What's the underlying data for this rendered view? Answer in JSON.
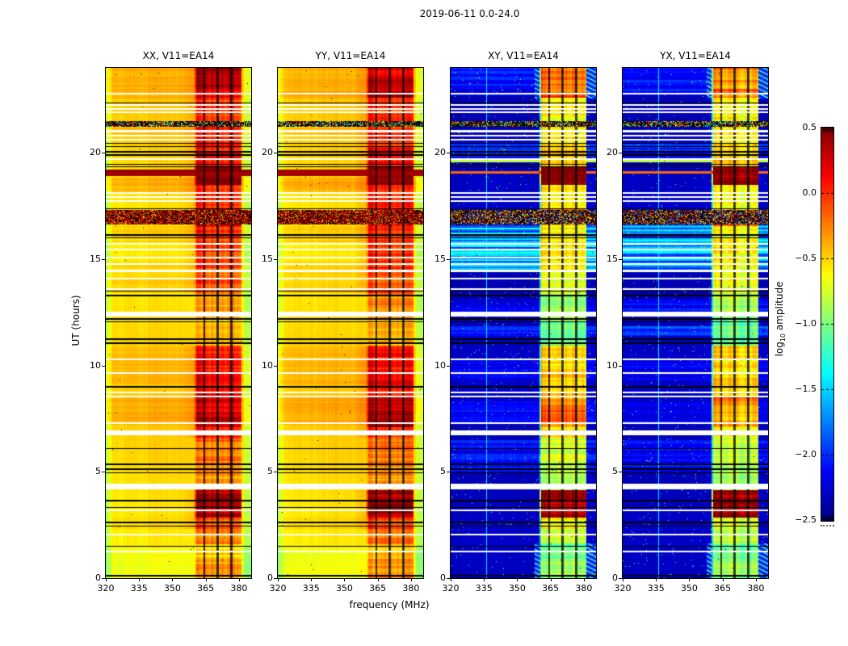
{
  "chart_data": {
    "type": "heatmap",
    "title": "2019-06-11 0.0-24.0",
    "xlabel": "frequency (MHz)",
    "ylabel": "UT (hours)",
    "x_range": [
      320,
      385.5
    ],
    "y_range": [
      0,
      24
    ],
    "x_ticks": {
      "values": [
        320,
        335,
        350,
        365,
        380
      ],
      "labels": [
        "320",
        "335",
        "350",
        "365",
        "380"
      ]
    },
    "y_ticks": {
      "values": [
        0,
        5,
        10,
        15,
        20
      ],
      "labels": [
        "0",
        "5",
        "10",
        "15",
        "20"
      ]
    },
    "panels": [
      {
        "label": "XX, V11=EA14",
        "kind": "auto"
      },
      {
        "label": "YY, V11=EA14",
        "kind": "auto"
      },
      {
        "label": "XY, V11=EA14",
        "kind": "cross"
      },
      {
        "label": "YX, V11=EA14",
        "kind": "cross"
      }
    ],
    "colorbar": {
      "label_prefix": "log",
      "label_sub": "10",
      "label_suffix": " amplitude",
      "colormap": "jet",
      "clim": [
        -2.5,
        0.5
      ],
      "tick_values": [
        0.5,
        0.0,
        -0.5,
        -1.0,
        -1.5,
        -2.0,
        -2.5
      ],
      "tick_labels": [
        "0.5",
        "0.0",
        "−0.5",
        "−1.0",
        "−1.5",
        "−2.0",
        "−2.5"
      ]
    },
    "features": {
      "auto_base_level": -0.56,
      "cross_base_level": -2.32,
      "rfi_band": {
        "f_start": 359.9,
        "f_end": 381.3,
        "gaps": [
          364.35,
          370.35,
          376.45
        ],
        "gap_halfwidth": 0.5,
        "subband_end": 364.3
      },
      "rfi_time_profile": [
        [
          0.0,
          0.9,
          -0.35
        ],
        [
          0.9,
          1.6,
          -0.5
        ],
        [
          1.6,
          2.3,
          -0.25
        ],
        [
          2.3,
          2.85,
          -0.1
        ],
        [
          2.85,
          4.15,
          0.42
        ],
        [
          4.15,
          4.45,
          -0.2
        ],
        [
          4.45,
          5.4,
          -0.3
        ],
        [
          5.4,
          6.6,
          -0.2
        ],
        [
          6.6,
          7.1,
          0.0
        ],
        [
          7.1,
          8.6,
          0.32
        ],
        [
          8.6,
          9.6,
          0.12
        ],
        [
          9.6,
          10.95,
          0.05
        ],
        [
          10.95,
          12.2,
          -0.45
        ],
        [
          12.2,
          13.4,
          -0.3
        ],
        [
          13.4,
          14.4,
          -0.12
        ],
        [
          14.4,
          16.55,
          -0.05
        ],
        [
          16.55,
          17.35,
          0.25
        ],
        [
          17.35,
          18.5,
          -0.02
        ],
        [
          18.5,
          19.35,
          0.5
        ],
        [
          19.35,
          20.1,
          0.12
        ],
        [
          20.1,
          21.2,
          0.0
        ],
        [
          21.2,
          22.6,
          -0.05
        ],
        [
          22.6,
          24.0,
          0.32
        ]
      ],
      "white_rows": [
        [
          1.25,
          0.04
        ],
        [
          2.05,
          0.04
        ],
        [
          3.2,
          0.04
        ],
        [
          4.3,
          0.13
        ],
        [
          6.85,
          0.11
        ],
        [
          7.3,
          0.04
        ],
        [
          8.55,
          0.04
        ],
        [
          8.72,
          0.04
        ],
        [
          9.65,
          0.04
        ],
        [
          10.3,
          0.04
        ],
        [
          12.42,
          0.1
        ],
        [
          13.6,
          0.04
        ],
        [
          14.1,
          0.04
        ],
        [
          14.45,
          0.04
        ],
        [
          14.78,
          0.04
        ],
        [
          15.08,
          0.04
        ],
        [
          15.45,
          0.04
        ],
        [
          15.72,
          0.04
        ],
        [
          17.72,
          0.04
        ],
        [
          17.92,
          0.04
        ],
        [
          18.12,
          0.04
        ],
        [
          19.72,
          0.04
        ],
        [
          20.62,
          0.04
        ],
        [
          20.82,
          0.04
        ],
        [
          21.02,
          0.04
        ],
        [
          21.9,
          0.04
        ],
        [
          22.08,
          0.04
        ],
        [
          22.25,
          0.04
        ],
        [
          22.78,
          0.04
        ]
      ],
      "black_rows": [
        [
          0.12,
          0.03
        ],
        [
          1.5,
          0.03
        ],
        [
          2.45,
          0.03
        ],
        [
          2.62,
          0.03
        ],
        [
          3.32,
          0.03
        ],
        [
          3.65,
          0.03
        ],
        [
          4.95,
          0.03
        ],
        [
          5.12,
          0.03
        ],
        [
          5.35,
          0.03
        ],
        [
          6.1,
          0.03
        ],
        [
          9.0,
          0.03
        ],
        [
          11.05,
          0.04
        ],
        [
          11.25,
          0.04
        ],
        [
          12.05,
          0.03
        ],
        [
          12.2,
          0.03
        ],
        [
          13.3,
          0.03
        ],
        [
          13.5,
          0.03
        ],
        [
          16.0,
          0.03
        ],
        [
          16.15,
          0.03
        ],
        [
          17.38,
          0.03
        ],
        [
          19.35,
          0.03
        ],
        [
          19.47,
          0.03
        ],
        [
          19.9,
          0.03
        ],
        [
          20.05,
          0.03
        ],
        [
          20.3,
          0.03
        ],
        [
          20.45,
          0.03
        ],
        [
          22.35,
          0.03
        ]
      ],
      "speckle_bands": [
        {
          "t0": 16.62,
          "t1": 17.32,
          "kind": "dense"
        },
        {
          "t0": 21.24,
          "t1": 21.5,
          "kind": "multi"
        }
      ],
      "red_band": [
        18.9,
        19.22,
        0.42
      ],
      "auto_stripe_bands": [
        [
          0.0,
          1.45,
          -0.1
        ],
        [
          2.3,
          2.9,
          0.06
        ],
        [
          7.2,
          8.6,
          0.11
        ],
        [
          9.1,
          10.95,
          0.08
        ],
        [
          13.4,
          14.9,
          0.08
        ],
        [
          15.8,
          16.55,
          0.1
        ],
        [
          18.15,
          18.85,
          0.16
        ],
        [
          20.9,
          21.2,
          0.08
        ],
        [
          22.55,
          24.0,
          0.12
        ]
      ],
      "cross_cyan_bands": [
        [
          14.4,
          16.6,
          0.85
        ],
        [
          5.0,
          6.5,
          0.3
        ],
        [
          11.4,
          11.85,
          0.45
        ],
        [
          12.3,
          13.1,
          0.3
        ],
        [
          19.75,
          20.5,
          0.35
        ],
        [
          22.7,
          24.0,
          0.3
        ],
        [
          7.3,
          8.3,
          0.25
        ],
        [
          9.3,
          10.3,
          0.18
        ]
      ],
      "cross_rows": [
        [
          19.6,
          0.055,
          -0.8
        ],
        [
          19.08,
          0.06,
          -0.18
        ]
      ],
      "vertical_line": {
        "freq": 336.1,
        "value_cross": -1.45
      }
    }
  }
}
